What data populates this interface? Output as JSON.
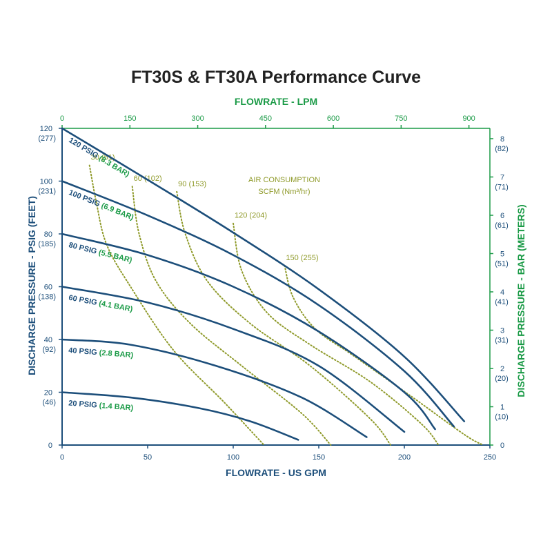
{
  "colors": {
    "navy": "#1c4e7a",
    "green": "#1a9a46",
    "olive": "#8f9a2a",
    "title": "#222222"
  },
  "chart_data": {
    "type": "line",
    "title": "FT30S & FT30A Performance Curve",
    "xlabel": "FLOWRATE - US GPM",
    "x2label": "FLOWRATE - LPM",
    "ylabel": "DISCHARGE PRESSURE - PSIG (FEET)",
    "y2label": "DISCHARGE PRESSURE - BAR (METERS)",
    "xlim": [
      0,
      250
    ],
    "ylim": [
      0,
      120
    ],
    "x_ticks": [
      "0",
      "50",
      "100",
      "150",
      "200",
      "250"
    ],
    "x2_ticks": [
      {
        "value": 0,
        "label": "0"
      },
      {
        "value": 150,
        "label": "150"
      },
      {
        "value": 300,
        "label": "300"
      },
      {
        "value": 450,
        "label": "450"
      },
      {
        "value": 600,
        "label": "600"
      },
      {
        "value": 750,
        "label": "750"
      },
      {
        "value": 900,
        "label": "900"
      }
    ],
    "y_ticks": [
      {
        "value": 0,
        "label": "0",
        "sub": ""
      },
      {
        "value": 20,
        "label": "20",
        "sub": "(46)"
      },
      {
        "value": 40,
        "label": "40",
        "sub": "(92)"
      },
      {
        "value": 60,
        "label": "60",
        "sub": "(138)"
      },
      {
        "value": 80,
        "label": "80",
        "sub": "(185)"
      },
      {
        "value": 100,
        "label": "100",
        "sub": "(231)"
      },
      {
        "value": 120,
        "label": "120",
        "sub": "(277)"
      }
    ],
    "y2_ticks": [
      {
        "value": 0,
        "label": "0",
        "sub": ""
      },
      {
        "value": 1,
        "label": "1",
        "sub": "(10)"
      },
      {
        "value": 2,
        "label": "2",
        "sub": "(20)"
      },
      {
        "value": 3,
        "label": "3",
        "sub": "(31)"
      },
      {
        "value": 4,
        "label": "4",
        "sub": "(41)"
      },
      {
        "value": 5,
        "label": "5",
        "sub": "(51)"
      },
      {
        "value": 6,
        "label": "6",
        "sub": "(61)"
      },
      {
        "value": 7,
        "label": "7",
        "sub": "(71)"
      },
      {
        "value": 8,
        "label": "8",
        "sub": "(82)"
      }
    ],
    "series": [
      {
        "name": "120 PSIG",
        "name_metric": "(8.3 BAR)",
        "x": [
          0,
          50,
          100,
          150,
          200,
          235
        ],
        "y": [
          120,
          100.5,
          80.5,
          59,
          33.5,
          9
        ]
      },
      {
        "name": "100 PSIG",
        "name_metric": "(6.9 BAR)",
        "x": [
          0,
          50,
          100,
          150,
          200,
          229
        ],
        "y": [
          100,
          87,
          72,
          53,
          28,
          7
        ]
      },
      {
        "name": "80 PSIG",
        "name_metric": "(5.5 BAR)",
        "x": [
          0,
          50,
          100,
          150,
          200,
          218
        ],
        "y": [
          80,
          72,
          60,
          43,
          20,
          6
        ]
      },
      {
        "name": "60 PSIG",
        "name_metric": "(4.1 BAR)",
        "x": [
          0,
          50,
          100,
          150,
          200
        ],
        "y": [
          60,
          54,
          44,
          30,
          5
        ]
      },
      {
        "name": "40 PSIG",
        "name_metric": "(2.8 BAR)",
        "x": [
          0,
          40,
          90,
          140,
          178
        ],
        "y": [
          40,
          38,
          30,
          18,
          3
        ]
      },
      {
        "name": "20 PSIG",
        "name_metric": "(1.4 BAR)",
        "x": [
          0,
          40,
          80,
          110,
          138
        ],
        "y": [
          20,
          18,
          14,
          9,
          2
        ]
      }
    ],
    "air_consumption_label": [
      "AIR CONSUMPTION",
      "SCFM (Nm³/hr)"
    ],
    "air_consumption": [
      {
        "label": "30 (51)",
        "x": [
          16,
          20,
          26,
          40,
          65,
          95,
          118
        ],
        "y": [
          106,
          92,
          76,
          60,
          36,
          16,
          0
        ]
      },
      {
        "label": "60 (102)",
        "x": [
          41,
          45,
          55,
          75,
          105,
          140,
          157
        ],
        "y": [
          98,
          80,
          62,
          46,
          30,
          12,
          0
        ]
      },
      {
        "label": "90 (153)",
        "x": [
          67,
          72,
          85,
          110,
          145,
          180,
          192
        ],
        "y": [
          96,
          80,
          62,
          46,
          30,
          10,
          0
        ]
      },
      {
        "label": "120 (204)",
        "x": [
          100,
          105,
          120,
          145,
          180,
          210,
          220
        ],
        "y": [
          84,
          66,
          50,
          38,
          24,
          8,
          0
        ]
      },
      {
        "label": "150 (255)",
        "x": [
          130,
          135,
          148,
          170,
          205,
          235,
          246
        ],
        "y": [
          68,
          56,
          44,
          34,
          18,
          4,
          0
        ]
      }
    ]
  }
}
